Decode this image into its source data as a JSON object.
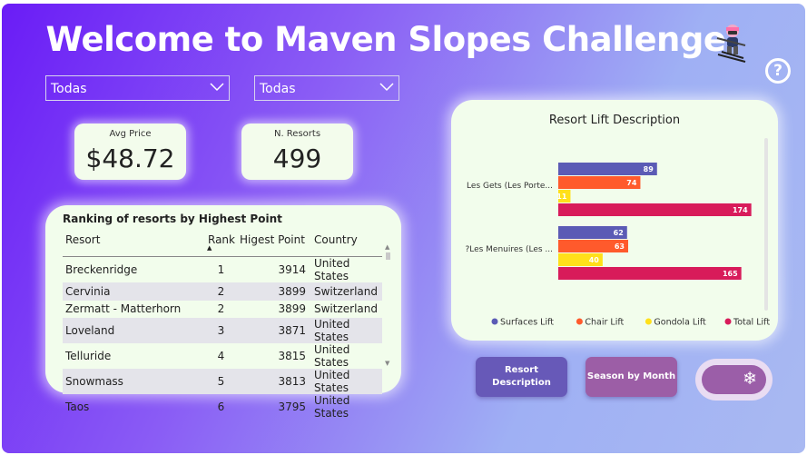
{
  "header": {
    "title": "Welcome to Maven Slopes Challenge",
    "help_glyph": "?"
  },
  "filters": [
    {
      "value": "Todas"
    },
    {
      "value": "Todas"
    }
  ],
  "kpis": {
    "avg_price": {
      "label": "Avg Price",
      "value": "$48.72"
    },
    "resorts": {
      "label": "N. Resorts",
      "value": "499"
    }
  },
  "ranking": {
    "title": "Ranking of resorts by Highest Point",
    "columns": [
      "Resort",
      "Rank",
      "Higest Point",
      "Country"
    ],
    "sort_indicator": "▲",
    "rows": [
      {
        "resort": "Breckenridge",
        "rank": "1",
        "point": "3914",
        "country": "United States"
      },
      {
        "resort": "Cervinia",
        "rank": "2",
        "point": "3899",
        "country": "Switzerland"
      },
      {
        "resort": "Zermatt - Matterhorn",
        "rank": "2",
        "point": "3899",
        "country": "Switzerland"
      },
      {
        "resort": "Loveland",
        "rank": "3",
        "point": "3871",
        "country": "United States"
      },
      {
        "resort": "Telluride",
        "rank": "4",
        "point": "3815",
        "country": "United States"
      },
      {
        "resort": "Snowmass",
        "rank": "5",
        "point": "3813",
        "country": "United States"
      },
      {
        "resort": "Taos",
        "rank": "6",
        "point": "3795",
        "country": "United States"
      }
    ]
  },
  "chart_data": {
    "type": "bar",
    "orientation": "horizontal",
    "title": "Resort Lift Description",
    "categories": [
      "Les Gets (Les Porte...",
      "?Les Menuires (Les ..."
    ],
    "series": [
      {
        "name": "Surfaces Lift",
        "color": "#5b5bb5",
        "values": [
          89,
          62
        ]
      },
      {
        "name": "Chair Lift",
        "color": "#ff5a2c",
        "values": [
          74,
          63
        ]
      },
      {
        "name": "Gondola Lift",
        "color": "#ffe01a",
        "values": [
          11,
          40
        ]
      },
      {
        "name": "Total Lift",
        "color": "#d81b5a",
        "values": [
          174,
          165
        ]
      }
    ],
    "xlim": [
      0,
      180
    ],
    "legend": "bottom",
    "data_labels": true
  },
  "buttons": {
    "resort_description": "Resort Description",
    "season_by_month": "Season by Month",
    "toggle_icon": "snowflake-icon",
    "toggle_glyph": "❄"
  },
  "colors": {
    "button_blue": "#6759b8",
    "button_purple": "#9c5ea6",
    "panel_bg": "#f2fdec"
  }
}
